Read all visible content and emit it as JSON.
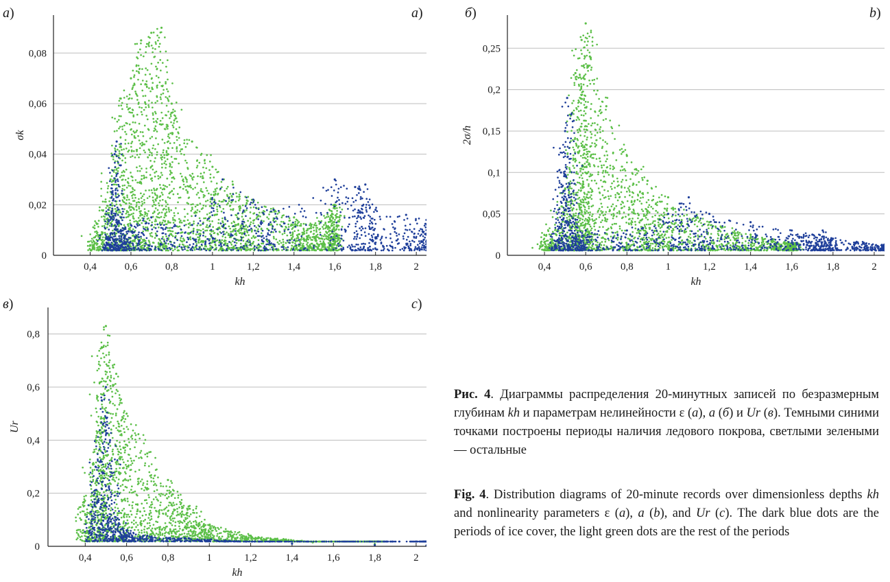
{
  "figure": {
    "panels": [
      {
        "id": "a",
        "label_left": "а",
        "label_right": "a",
        "ylabel": "σk",
        "xlabel": "kh",
        "yticks": [
          "0",
          "0,02",
          "0,04",
          "0,06",
          "0,08"
        ],
        "xticks": [
          "0,4",
          "0,6",
          "0,8",
          "1",
          "1,2",
          "1,4",
          "1,6",
          "1,8",
          "2"
        ]
      },
      {
        "id": "b",
        "label_left": "б",
        "label_right": "b",
        "ylabel": "2σ/h",
        "xlabel": "kh",
        "yticks": [
          "0",
          "0,05",
          "0,1",
          "0,15",
          "0,2",
          "0,25"
        ],
        "xticks": [
          "0,4",
          "0,6",
          "0,8",
          "1",
          "1,2",
          "1,4",
          "1,6",
          "1,8",
          "2"
        ]
      },
      {
        "id": "c",
        "label_left": "в",
        "label_right": "c",
        "ylabel": "Ur",
        "xlabel": "kh",
        "yticks": [
          "0",
          "0,2",
          "0,4",
          "0,6",
          "0,8"
        ],
        "xticks": [
          "0,4",
          "0,6",
          "0,8",
          "1",
          "1,2",
          "1,4",
          "1,6",
          "1,8",
          "2"
        ]
      }
    ],
    "colors": {
      "blue": "#1f3f9a",
      "green": "#5cbf48",
      "grid": "#bdbdbd",
      "axis": "#222222"
    }
  },
  "chart_data": [
    {
      "type": "scatter",
      "xlabel": "kh",
      "ylabel": "σk",
      "xlim": [
        0.22,
        2.05
      ],
      "ylim": [
        0,
        0.095
      ],
      "grid": "horizontal",
      "series": [
        {
          "color": "blue",
          "points": [
            [
              0.48,
              0.005
            ],
            [
              0.5,
              0.02
            ],
            [
              0.52,
              0.04
            ],
            [
              0.53,
              0.045
            ],
            [
              0.55,
              0.01
            ],
            [
              0.6,
              0.012
            ],
            [
              0.7,
              0.015
            ],
            [
              0.9,
              0.012
            ],
            [
              1.05,
              0.03
            ],
            [
              1.2,
              0.022
            ],
            [
              1.3,
              0.018
            ],
            [
              1.6,
              0.03
            ],
            [
              1.7,
              0.027
            ],
            [
              1.75,
              0.028
            ],
            [
              1.8,
              0.018
            ],
            [
              1.95,
              0.016
            ],
            [
              2.05,
              0.014
            ]
          ]
        },
        {
          "color": "green",
          "points": [
            [
              0.4,
              0.004
            ],
            [
              0.5,
              0.03
            ],
            [
              0.55,
              0.062
            ],
            [
              0.6,
              0.07
            ],
            [
              0.65,
              0.085
            ],
            [
              0.7,
              0.088
            ],
            [
              0.75,
              0.09
            ],
            [
              0.8,
              0.06
            ],
            [
              0.9,
              0.045
            ],
            [
              1.0,
              0.035
            ],
            [
              1.1,
              0.028
            ],
            [
              1.2,
              0.022
            ],
            [
              1.4,
              0.015
            ],
            [
              1.5,
              0.012
            ],
            [
              1.6,
              0.02
            ]
          ]
        }
      ]
    },
    {
      "type": "scatter",
      "xlabel": "kh",
      "ylabel": "2σ/h",
      "xlim": [
        0.22,
        2.05
      ],
      "ylim": [
        0,
        0.29
      ],
      "grid": "horizontal",
      "series": [
        {
          "color": "blue",
          "points": [
            [
              0.45,
              0.01
            ],
            [
              0.48,
              0.1
            ],
            [
              0.5,
              0.15
            ],
            [
              0.51,
              0.19
            ],
            [
              0.53,
              0.17
            ],
            [
              0.55,
              0.02
            ],
            [
              0.6,
              0.03
            ],
            [
              0.8,
              0.03
            ],
            [
              1.0,
              0.05
            ],
            [
              1.1,
              0.07
            ],
            [
              1.2,
              0.05
            ],
            [
              1.4,
              0.04
            ],
            [
              1.6,
              0.03
            ],
            [
              1.7,
              0.025
            ],
            [
              1.75,
              0.03
            ],
            [
              1.8,
              0.02
            ],
            [
              1.95,
              0.015
            ],
            [
              2.05,
              0.013
            ]
          ]
        },
        {
          "color": "green",
          "points": [
            [
              0.38,
              0.01
            ],
            [
              0.5,
              0.08
            ],
            [
              0.55,
              0.22
            ],
            [
              0.58,
              0.26
            ],
            [
              0.6,
              0.28
            ],
            [
              0.62,
              0.24
            ],
            [
              0.7,
              0.18
            ],
            [
              0.8,
              0.12
            ],
            [
              0.9,
              0.09
            ],
            [
              1.0,
              0.07
            ],
            [
              1.2,
              0.04
            ],
            [
              1.4,
              0.025
            ],
            [
              1.6,
              0.015
            ]
          ]
        }
      ]
    },
    {
      "type": "scatter",
      "xlabel": "kh",
      "ylabel": "Ur",
      "xlim": [
        0.22,
        2.05
      ],
      "ylim": [
        0,
        0.9
      ],
      "grid": "horizontal",
      "series": [
        {
          "color": "blue",
          "points": [
            [
              0.42,
              0.05
            ],
            [
              0.45,
              0.3
            ],
            [
              0.48,
              0.55
            ],
            [
              0.5,
              0.6
            ],
            [
              0.52,
              0.4
            ],
            [
              0.55,
              0.1
            ],
            [
              0.6,
              0.06
            ],
            [
              0.7,
              0.04
            ],
            [
              0.9,
              0.03
            ],
            [
              1.1,
              0.02
            ],
            [
              1.4,
              0.01
            ],
            [
              1.8,
              0.005
            ],
            [
              2.05,
              0.003
            ]
          ]
        },
        {
          "color": "green",
          "points": [
            [
              0.38,
              0.1
            ],
            [
              0.45,
              0.4
            ],
            [
              0.48,
              0.75
            ],
            [
              0.5,
              0.83
            ],
            [
              0.55,
              0.65
            ],
            [
              0.6,
              0.5
            ],
            [
              0.7,
              0.35
            ],
            [
              0.8,
              0.25
            ],
            [
              0.9,
              0.15
            ],
            [
              1.0,
              0.08
            ],
            [
              1.2,
              0.04
            ],
            [
              1.5,
              0.015
            ],
            [
              1.8,
              0.008
            ]
          ]
        }
      ]
    }
  ],
  "caption": {
    "ru": {
      "fig": "Рис. 4",
      "text1": ". Диаграммы распределения 20-минутных записей по безразмерным глубинам ",
      "kh": "kh",
      "text2": " и параметрам нелинейности ε (",
      "a": "а",
      "text3": "), ",
      "a2": "a",
      "text4": " (",
      "b": "б",
      "text5": ") и ",
      "ur": "Ur",
      "text6": " (",
      "c": "в",
      "text7": "). Темными синими точками построены периоды наличия ледового покрова, светлыми зелеными — остальные"
    },
    "en": {
      "fig": "Fig. 4",
      "text1": ". Distribution diagrams of 20-minute records over dimensionless depths ",
      "kh": "kh",
      "text2": " and nonlinearity parameters ε (",
      "a": "a",
      "text3": "), ",
      "a2": "a",
      "text4": " (",
      "b": "b",
      "text5": "), and ",
      "ur": "Ur",
      "text6": " (",
      "c": "c",
      "text7": "). The dark blue dots are the periods of ice cover, the light green dots are the rest of the periods"
    }
  }
}
